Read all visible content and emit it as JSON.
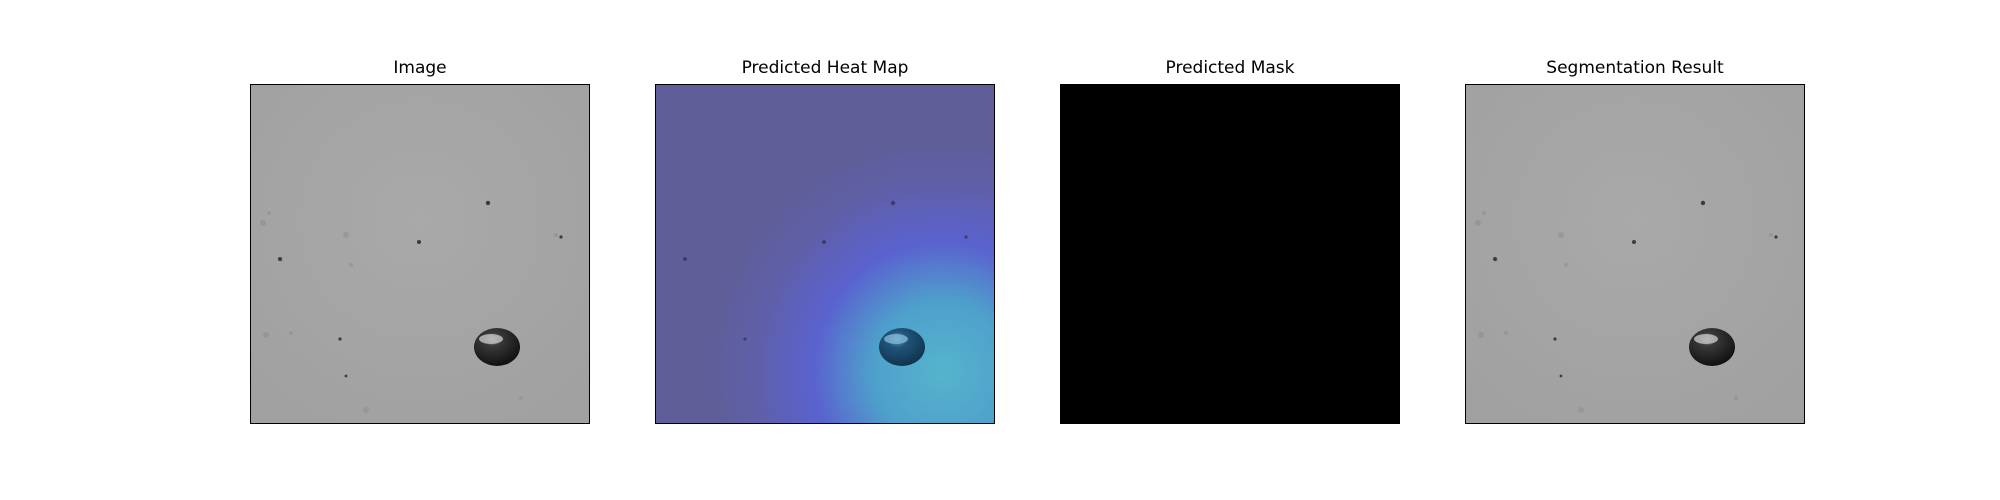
{
  "figure": {
    "panels": [
      {
        "title": "Image"
      },
      {
        "title": "Predicted Heat Map"
      },
      {
        "title": "Predicted Mask"
      },
      {
        "title": "Segmentation Result"
      }
    ]
  },
  "colors": {
    "background": "#ffffff",
    "surface_gray": "#a6a6a6",
    "heatmap_base": "#5f5e98",
    "heatmap_hot": "#4fa7c6",
    "mask": "#000000"
  }
}
